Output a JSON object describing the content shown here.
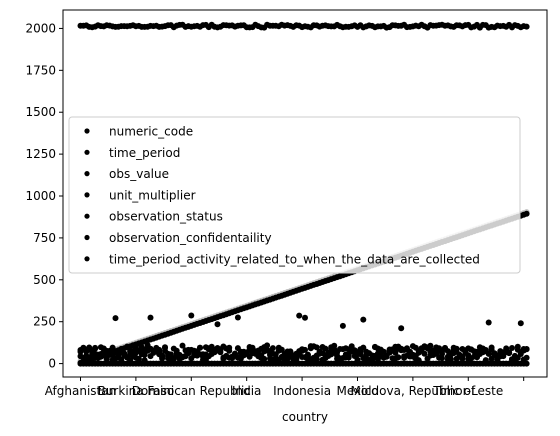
{
  "chart_data": {
    "type": "scatter",
    "title": "",
    "xlabel": "country",
    "ylabel": "",
    "x_tick_labels": [
      "Afghanistan",
      "Burkina Faso",
      "Dominican Republic",
      "India",
      "Indonesia",
      "Mexico",
      "Moldova, Republic of",
      "Timor-Leste",
      ""
    ],
    "x_count": 154,
    "ylim": [
      -80,
      2110
    ],
    "yticks": [
      0,
      250,
      500,
      750,
      1000,
      1250,
      1500,
      1750,
      2000
    ],
    "grid": false,
    "legend_placement": "center-left",
    "series": [
      {
        "name": "numeric_code",
        "color": "#000000"
      },
      {
        "name": "time_period",
        "color": "#000000"
      },
      {
        "name": "obs_value",
        "color": "#000000"
      },
      {
        "name": "unit_multiplier",
        "color": "#000000"
      },
      {
        "name": "observation_status",
        "color": "#000000"
      },
      {
        "name": "observation_confidentaility",
        "color": "#000000"
      },
      {
        "name": "time_period_activity_related_to_when_the_data_are_collected",
        "color": "#000000"
      }
    ],
    "grey_series_color": "#c0c0c0",
    "numeric_code": {
      "start": 4,
      "end": 894
    },
    "time_period": {
      "min": 2005,
      "max": 2022
    },
    "obs_value": {
      "min": 0,
      "max": 300
    },
    "unit_multiplier": 0
  }
}
